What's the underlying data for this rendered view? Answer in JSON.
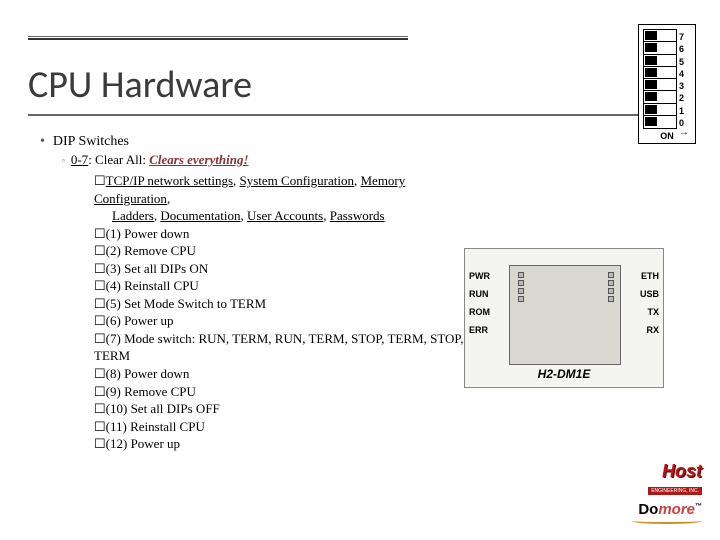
{
  "title": "CPU Hardware",
  "bullet1": "DIP Switches",
  "bullet2_lead": "0-7",
  "bullet2_mid": ": Clear All: ",
  "bullet2_emph": "Clears everything!",
  "reset_items_label": "TCP/IP network settings",
  "reset_items": [
    "System Configuration",
    "Memory Configuration",
    "Ladders",
    "Documentation",
    "User Accounts",
    "Passwords"
  ],
  "steps": [
    "(1) Power down",
    "(2) Remove CPU",
    "(3) Set all DIPs ON",
    "(4) Reinstall CPU",
    "(5) Set Mode Switch to TERM",
    "(6) Power up",
    "(7) Mode switch: RUN, TERM, RUN, TERM, STOP, TERM, STOP, TERM",
    "(8) Power down",
    "(9) Remove CPU",
    "(10) Set all DIPs OFF",
    "(11) Reinstall CPU",
    "(12) Power up"
  ],
  "dip": {
    "numbers": [
      "7",
      "6",
      "5",
      "4",
      "3",
      "2",
      "1",
      "0"
    ],
    "on_label": "ON"
  },
  "cpu": {
    "left_labels": [
      "PWR",
      "RUN",
      "ROM",
      "ERR"
    ],
    "right_labels": [
      "ETH",
      "USB",
      "TX",
      "RX"
    ],
    "model": "H2-DM1E"
  },
  "logo": {
    "host": "Host",
    "host_sub": "ENGINEERING, INC.",
    "domore_do": "Do",
    "domore_more": "more",
    "tm": "™"
  },
  "colors": {
    "emph": "#8b3030",
    "host_red": "#b01818"
  }
}
